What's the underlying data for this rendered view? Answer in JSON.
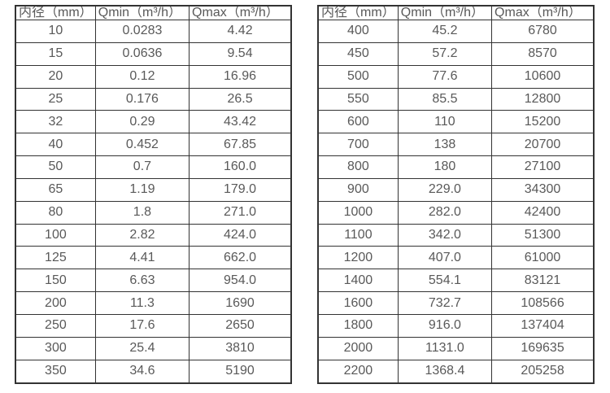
{
  "colors": {
    "border": "#333333",
    "text": "#595959",
    "background": "#ffffff"
  },
  "table_left": {
    "headers": [
      "内径（mm）",
      "Qmin（m³/h）",
      "Qmax（m³/h）"
    ],
    "rows": [
      [
        "10",
        "0.0283",
        "4.42"
      ],
      [
        "15",
        "0.0636",
        "9.54"
      ],
      [
        "20",
        "0.12",
        "16.96"
      ],
      [
        "25",
        "0.176",
        "26.5"
      ],
      [
        "32",
        "0.29",
        "43.42"
      ],
      [
        "40",
        "0.452",
        "67.85"
      ],
      [
        "50",
        "0.7",
        "160.0"
      ],
      [
        "65",
        "1.19",
        "179.0"
      ],
      [
        "80",
        "1.8",
        "271.0"
      ],
      [
        "100",
        "2.82",
        "424.0"
      ],
      [
        "125",
        "4.41",
        "662.0"
      ],
      [
        "150",
        "6.63",
        "954.0"
      ],
      [
        "200",
        "11.3",
        "1690"
      ],
      [
        "250",
        "17.6",
        "2650"
      ],
      [
        "300",
        "25.4",
        "3810"
      ],
      [
        "350",
        "34.6",
        "5190"
      ]
    ]
  },
  "table_right": {
    "headers": [
      "内径（mm）",
      "Qmin（m³/h）",
      "Qmax（m³/h）"
    ],
    "rows": [
      [
        "400",
        "45.2",
        "6780"
      ],
      [
        "450",
        "57.2",
        "8570"
      ],
      [
        "500",
        "77.6",
        "10600"
      ],
      [
        "550",
        "85.5",
        "12800"
      ],
      [
        "600",
        "110",
        "15200"
      ],
      [
        "700",
        "138",
        "20700"
      ],
      [
        "800",
        "180",
        "27100"
      ],
      [
        "900",
        "229.0",
        "34300"
      ],
      [
        "1000",
        "282.0",
        "42400"
      ],
      [
        "1100",
        "342.0",
        "51300"
      ],
      [
        "1200",
        "407.0",
        "61000"
      ],
      [
        "1400",
        "554.1",
        "83121"
      ],
      [
        "1600",
        "732.7",
        "108566"
      ],
      [
        "1800",
        "916.0",
        "137404"
      ],
      [
        "2000",
        "1131.0",
        "169635"
      ],
      [
        "2200",
        "1368.4",
        "205258"
      ]
    ]
  }
}
